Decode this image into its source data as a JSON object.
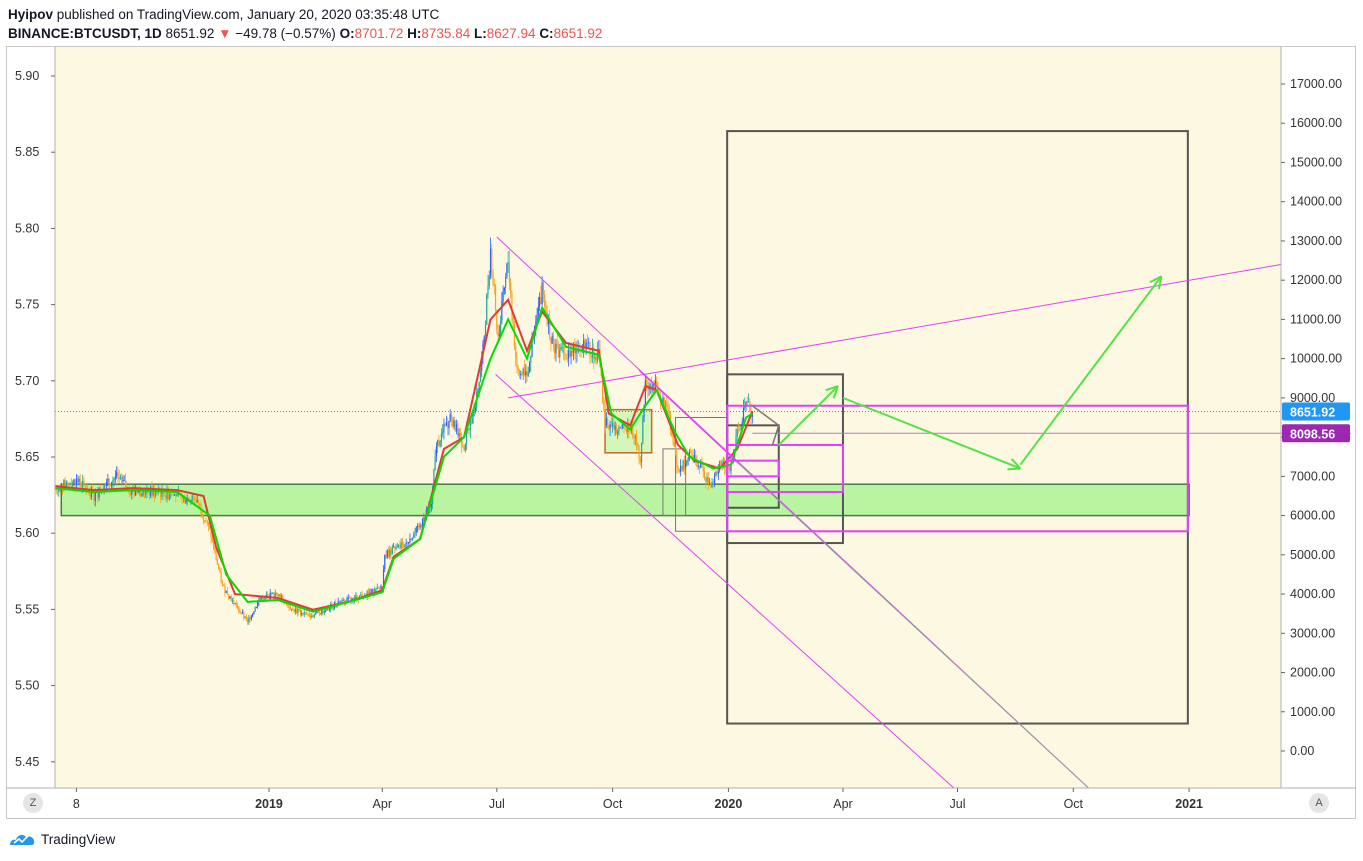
{
  "header": {
    "author": "Hyipov",
    "published": " published on TradingView.com, January 20, 2020 03:35:48 UTC",
    "symbol": "BINANCE:BTCUSDT, 1D",
    "price": "8651.92",
    "change": "−49.78 (−0.57%)",
    "o_label": "O:",
    "o_value": "8701.72",
    "h_label": "H:",
    "h_value": "8735.84",
    "l_label": "L:",
    "l_value": "8627.94",
    "c_label": "C:",
    "c_value": "8651.92"
  },
  "footer": {
    "brand": "TradingView"
  },
  "controls": {
    "z_button": "Z",
    "a_button": "A"
  },
  "colors": {
    "background": "#fdf8e1",
    "candle_up": "#26a69a",
    "candle_up_alt": "#2962ff",
    "candle_down": "#f7a21b",
    "ma_fast": "#00e000",
    "ma_slow": "#e53935",
    "magenta": "#e040fb",
    "box_gray": "#555555",
    "zone_green": "#b9f5a0",
    "arrow_green": "#54e346",
    "price_tag_blue": "#2196f3",
    "price_tag_purple": "#9c27b0"
  },
  "chart_data": {
    "type": "candlestick",
    "left_axis": {
      "ticks": [
        5.45,
        5.5,
        5.55,
        5.6,
        5.65,
        5.7,
        5.75,
        5.8,
        5.85,
        5.9
      ],
      "tick_labels": [
        "5.45",
        "5.50",
        "5.55",
        "5.60",
        "5.65",
        "5.70",
        "5.75",
        "5.80",
        "5.85",
        "5.90"
      ]
    },
    "right_axis": {
      "ticks": [
        0,
        1000,
        2000,
        3000,
        4000,
        5000,
        6000,
        7000,
        8000,
        9000,
        10000,
        11000,
        12000,
        13000,
        14000,
        15000,
        16000,
        17000
      ],
      "tick_labels": [
        "0.00",
        "1000.00",
        "2000.00",
        "3000.00",
        "4000.00",
        "5000.00",
        "6000.00",
        "7000.00",
        "8000.00",
        "9000.00",
        "10000.00",
        "11000.00",
        "12000.00",
        "13000.00",
        "14000.00",
        "15000.00",
        "16000.00",
        "17000.00"
      ]
    },
    "x_axis": {
      "ticks": [
        "2018-08",
        "2019-01",
        "2019-04",
        "2019-07",
        "2019-10",
        "2020-01",
        "2020-04",
        "2020-07",
        "2020-10",
        "2021-01"
      ],
      "tick_labels": [
        "8",
        "2019",
        "Apr",
        "Jul",
        "Oct",
        "2020",
        "Apr",
        "Jul",
        "Oct",
        "2021"
      ],
      "bold_labels": [
        "2019",
        "2020",
        "2021"
      ],
      "range": [
        "2018-07-15",
        "2021-03-15"
      ]
    },
    "current_price": {
      "value": 8651.92,
      "label": "8651.92"
    },
    "level_price": {
      "value": 8098.56,
      "label": "8098.56"
    },
    "price_path": [
      [
        "2018-07-15",
        6700
      ],
      [
        "2018-08-01",
        6900
      ],
      [
        "2018-08-15",
        6500
      ],
      [
        "2018-09-01",
        7000
      ],
      [
        "2018-09-15",
        6600
      ],
      [
        "2018-10-01",
        6600
      ],
      [
        "2018-10-20",
        6500
      ],
      [
        "2018-11-05",
        6400
      ],
      [
        "2018-11-15",
        5600
      ],
      [
        "2018-11-25",
        4200
      ],
      [
        "2018-12-08",
        3600
      ],
      [
        "2018-12-15",
        3300
      ],
      [
        "2018-12-25",
        3900
      ],
      [
        "2019-01-08",
        4000
      ],
      [
        "2019-01-20",
        3600
      ],
      [
        "2019-02-05",
        3450
      ],
      [
        "2019-02-20",
        3700
      ],
      [
        "2019-03-05",
        3850
      ],
      [
        "2019-03-20",
        4000
      ],
      [
        "2019-04-01",
        4150
      ],
      [
        "2019-04-03",
        5000
      ],
      [
        "2019-04-20",
        5300
      ],
      [
        "2019-05-01",
        5700
      ],
      [
        "2019-05-10",
        6300
      ],
      [
        "2019-05-14",
        7800
      ],
      [
        "2019-05-25",
        8500
      ],
      [
        "2019-06-05",
        7800
      ],
      [
        "2019-06-15",
        9000
      ],
      [
        "2019-06-20",
        10200
      ],
      [
        "2019-06-26",
        12800
      ],
      [
        "2019-07-02",
        10500
      ],
      [
        "2019-07-10",
        12500
      ],
      [
        "2019-07-17",
        9600
      ],
      [
        "2019-07-25",
        9600
      ],
      [
        "2019-08-06",
        11800
      ],
      [
        "2019-08-15",
        10200
      ],
      [
        "2019-08-25",
        10100
      ],
      [
        "2019-09-05",
        10400
      ],
      [
        "2019-09-20",
        10100
      ],
      [
        "2019-09-25",
        8400
      ],
      [
        "2019-10-05",
        8100
      ],
      [
        "2019-10-15",
        8300
      ],
      [
        "2019-10-23",
        7500
      ],
      [
        "2019-10-27",
        9400
      ],
      [
        "2019-11-05",
        9300
      ],
      [
        "2019-11-15",
        8500
      ],
      [
        "2019-11-22",
        7200
      ],
      [
        "2019-12-01",
        7500
      ],
      [
        "2019-12-10",
        7300
      ],
      [
        "2019-12-18",
        6700
      ],
      [
        "2019-12-25",
        7300
      ],
      [
        "2020-01-03",
        7200
      ],
      [
        "2020-01-08",
        8100
      ],
      [
        "2020-01-15",
        8800
      ],
      [
        "2020-01-20",
        8651.92
      ]
    ],
    "ma_fast_path": [
      [
        "2018-07-15",
        6700
      ],
      [
        "2018-08-15",
        6600
      ],
      [
        "2018-09-15",
        6650
      ],
      [
        "2018-10-20",
        6600
      ],
      [
        "2018-11-15",
        6000
      ],
      [
        "2018-11-28",
        4500
      ],
      [
        "2018-12-15",
        3800
      ],
      [
        "2019-01-08",
        3850
      ],
      [
        "2019-02-05",
        3550
      ],
      [
        "2019-03-05",
        3800
      ],
      [
        "2019-04-01",
        4050
      ],
      [
        "2019-04-10",
        4900
      ],
      [
        "2019-05-01",
        5400
      ],
      [
        "2019-05-20",
        7500
      ],
      [
        "2019-06-05",
        8000
      ],
      [
        "2019-06-26",
        10000
      ],
      [
        "2019-07-10",
        11000
      ],
      [
        "2019-07-25",
        10000
      ],
      [
        "2019-08-06",
        11300
      ],
      [
        "2019-08-25",
        10300
      ],
      [
        "2019-09-20",
        10100
      ],
      [
        "2019-09-30",
        8600
      ],
      [
        "2019-10-15",
        8200
      ],
      [
        "2019-10-27",
        8800
      ],
      [
        "2019-11-05",
        9200
      ],
      [
        "2019-11-20",
        8100
      ],
      [
        "2019-12-01",
        7500
      ],
      [
        "2019-12-20",
        7200
      ],
      [
        "2020-01-03",
        7300
      ],
      [
        "2020-01-15",
        8500
      ],
      [
        "2020-01-20",
        8600
      ]
    ],
    "ma_slow_path": [
      [
        "2018-07-15",
        6750
      ],
      [
        "2018-08-15",
        6650
      ],
      [
        "2018-09-15",
        6700
      ],
      [
        "2018-10-20",
        6650
      ],
      [
        "2018-11-10",
        6500
      ],
      [
        "2018-11-20",
        5200
      ],
      [
        "2018-12-05",
        4000
      ],
      [
        "2019-01-08",
        3900
      ],
      [
        "2019-02-05",
        3600
      ],
      [
        "2019-03-05",
        3800
      ],
      [
        "2019-04-01",
        4100
      ],
      [
        "2019-04-10",
        4950
      ],
      [
        "2019-05-01",
        5400
      ],
      [
        "2019-05-20",
        7700
      ],
      [
        "2019-06-05",
        8000
      ],
      [
        "2019-06-26",
        11000
      ],
      [
        "2019-07-10",
        11500
      ],
      [
        "2019-07-25",
        10200
      ],
      [
        "2019-08-06",
        11200
      ],
      [
        "2019-08-25",
        10400
      ],
      [
        "2019-09-20",
        10200
      ],
      [
        "2019-09-28",
        8600
      ],
      [
        "2019-10-15",
        8300
      ],
      [
        "2019-10-27",
        9300
      ],
      [
        "2019-11-05",
        9200
      ],
      [
        "2019-11-22",
        7800
      ],
      [
        "2019-12-05",
        7400
      ],
      [
        "2019-12-25",
        7200
      ],
      [
        "2020-01-08",
        7700
      ],
      [
        "2020-01-20",
        8650
      ]
    ],
    "support_zone": {
      "from": "2018-07-20",
      "to": "2021-01-01",
      "low": 6000,
      "high": 6800
    },
    "channel_upper": [
      [
        "2019-07-01",
        13100
      ],
      [
        "2020-10-15",
        -1000
      ]
    ],
    "channel_lower": [
      [
        "2019-06-30",
        9600
      ],
      [
        "2020-06-30",
        -1000
      ]
    ],
    "channel_middle_fan": [
      [
        "2019-10-22",
        9700
      ],
      [
        "2020-01-10",
        7300
      ]
    ],
    "wedge_line": [
      [
        "2019-07-10",
        9000
      ],
      [
        "2021-03-15",
        12400
      ]
    ],
    "boxes_gray": [
      {
        "from": "2019-12-31",
        "to": "2020-12-31",
        "low": 700,
        "high": 15800
      },
      {
        "from": "2019-12-31",
        "to": "2020-04-01",
        "low": 5300,
        "high": 9600
      },
      {
        "from": "2019-12-31",
        "to": "2020-02-10",
        "low": 6200,
        "high": 8300
      },
      {
        "from": "2019-11-20",
        "to": "2019-12-31",
        "low": 5600,
        "high": 8500
      },
      {
        "from": "2019-11-10",
        "to": "2019-11-28",
        "low": 6000,
        "high": 7700
      }
    ],
    "boxes_orange": [
      {
        "from": "2019-09-25",
        "to": "2019-11-01",
        "low": 7600,
        "high": 8700
      }
    ],
    "boxes_magenta": [
      {
        "from": "2019-12-31",
        "to": "2020-12-31",
        "low": 5600,
        "high": 8800
      },
      {
        "from": "2019-12-31",
        "to": "2020-04-01",
        "low": 6600,
        "high": 7800
      },
      {
        "from": "2019-12-31",
        "to": "2020-02-10",
        "low": 7000,
        "high": 7400
      }
    ],
    "green_arrows": [
      [
        [
          "2020-02-10",
          7800
        ],
        [
          "2020-03-28",
          9300
        ]
      ],
      [
        [
          "2020-04-01",
          9000
        ],
        [
          "2020-08-20",
          7200
        ]
      ],
      [
        [
          "2020-08-20",
          7300
        ],
        [
          "2020-12-10",
          12100
        ]
      ]
    ],
    "projection_triangle": [
      [
        "2020-01-20",
        8800
      ],
      [
        "2020-02-10",
        8300
      ],
      [
        "2020-02-05",
        7800
      ]
    ]
  }
}
